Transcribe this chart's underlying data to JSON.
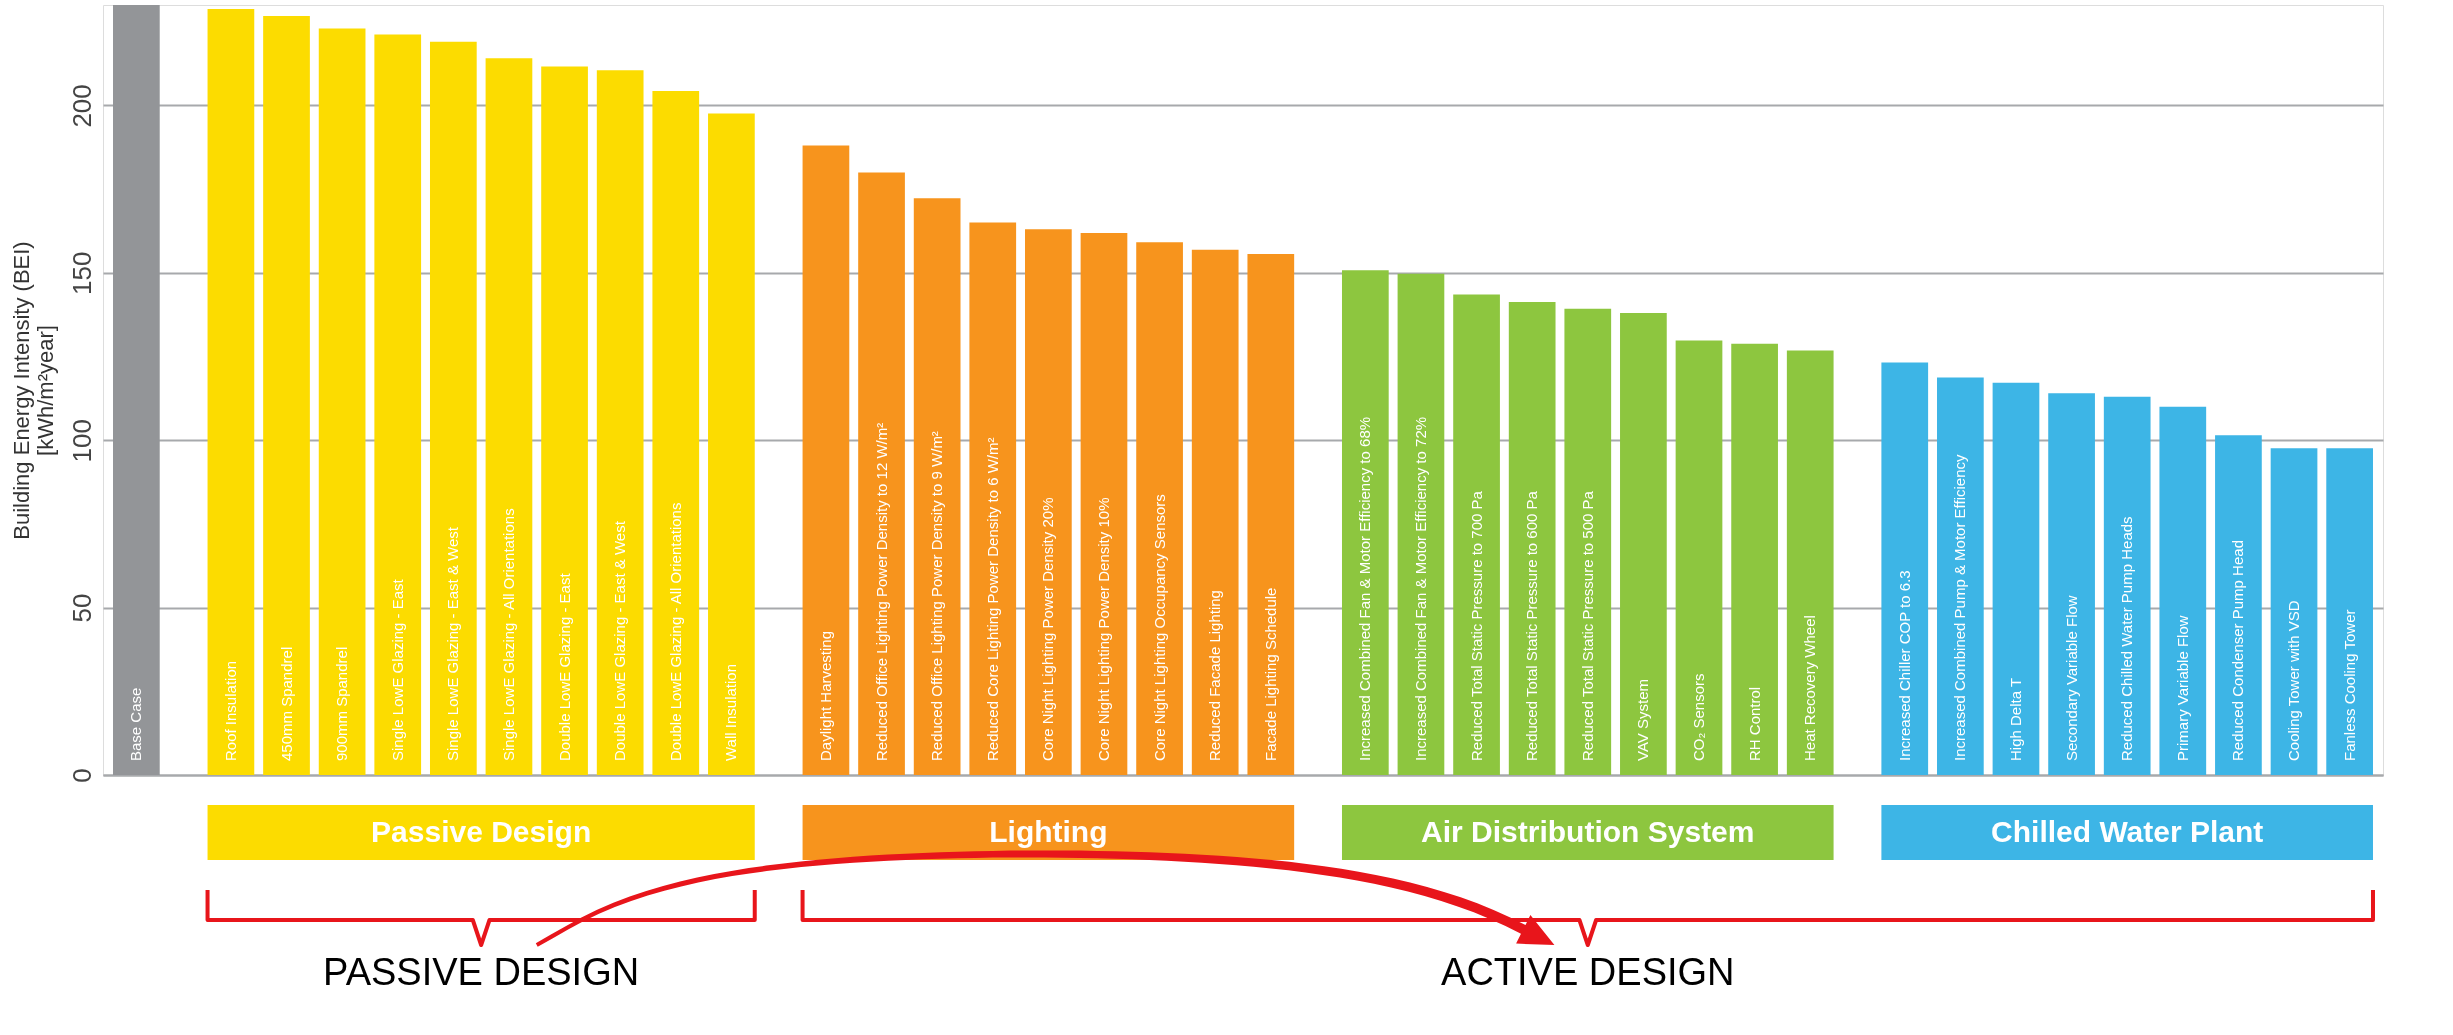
{
  "chart_data": {
    "type": "bar",
    "ylabel": "Building Energy Intensity (BEI)\n[kWh/m²year]",
    "categories": [
      "Base Case",
      "Roof Insulation",
      "450mm Spandrel",
      "900mm Spandrel",
      "Single LowE Glazing - East",
      "Single LowE Glazing - East & West",
      "Single LowE Glazing - All Orientations",
      "Double LowE Glazing - East",
      "Double LowE Glazing - East & West",
      "Double LowE Glazing - All Orientations",
      "Wall Insulation",
      "Daylight Harvesting",
      "Reduced Office Lighting Power Density to 12 W/m²",
      "Reduced Office Lighting Power Density to 9 W/m²",
      "Reduced Core Lighting Power Density to 6 W/m²",
      "Core Night Lighting Power Density 20%",
      "Core Night Lighting Power Density 10%",
      "Core Night Lighting Occupancy Sensors",
      "Reduced Facade Lighting",
      "Facade Lighting Schedule",
      "Increased Combined Fan & Motor Efficiency to 68%",
      "Increased Combined Fan & Motor Efficiency to 72%",
      "Reduced Total Static Pressure to 700 Pa",
      "Reduced Total Static Pressure to 600 Pa",
      "Reduced Total Static Pressure to 500 Pa",
      "VAV System",
      "CO₂ Sensors",
      "RH Control",
      "Heat Recovery Wheel",
      "Increased Chiller COP to 6.3",
      "Increased Combined Pump & Motor Efficiency",
      "High Delta T",
      "Secondary Variable Flow",
      "Reduced Chilled Water Pump Heads",
      "Primary Variable Flow",
      "Reduced Condenser Pump Head",
      "Cooling Tower with VSD",
      "Fanless Cooling Tower"
    ],
    "series": [
      {
        "color": "#939598",
        "values": [
          230,
          null,
          null,
          null,
          null,
          null,
          null,
          null,
          null,
          null,
          null,
          null,
          null,
          null,
          null,
          null,
          null,
          null,
          null,
          null,
          null,
          null,
          null,
          null,
          null,
          null,
          null,
          null,
          null,
          null,
          null,
          null,
          null,
          null,
          null,
          null,
          null,
          null
        ]
      },
      {
        "name": "Passive Design",
        "color": "#fcdc00",
        "values": [
          null,
          228.8,
          226.7,
          223,
          221.2,
          219,
          214.1,
          211.6,
          210.5,
          204.3,
          197.6,
          null,
          null,
          null,
          null,
          null,
          null,
          null,
          null,
          null,
          null,
          null,
          null,
          null,
          null,
          null,
          null,
          null,
          null,
          null,
          null,
          null,
          null,
          null,
          null,
          null,
          null,
          null
        ]
      },
      {
        "name": "Lighting",
        "color": "#f7941d",
        "values": [
          null,
          null,
          null,
          null,
          null,
          null,
          null,
          null,
          null,
          null,
          null,
          188,
          180,
          172.3,
          165,
          163,
          161.9,
          159.1,
          156.9,
          155.6,
          null,
          null,
          null,
          null,
          null,
          null,
          null,
          null,
          null,
          null,
          null,
          null,
          null,
          null,
          null,
          null,
          null,
          null
        ]
      },
      {
        "name": "Air Distribution System",
        "color": "#8dc63f",
        "values": [
          null,
          null,
          null,
          null,
          null,
          null,
          null,
          null,
          null,
          null,
          null,
          null,
          null,
          null,
          null,
          null,
          null,
          null,
          null,
          null,
          150.8,
          149.7,
          143.5,
          141.3,
          139.3,
          138,
          129.8,
          128.8,
          126.8,
          null,
          null,
          null,
          null,
          null,
          null,
          null,
          null,
          null
        ]
      },
      {
        "name": "Chilled Water Plant",
        "color": "#3db5e6",
        "values": [
          null,
          null,
          null,
          null,
          null,
          null,
          null,
          null,
          null,
          null,
          null,
          null,
          null,
          null,
          null,
          null,
          null,
          null,
          null,
          null,
          null,
          null,
          null,
          null,
          null,
          null,
          null,
          null,
          null,
          123.2,
          118.7,
          117.2,
          114,
          113,
          110,
          101.5,
          97.6,
          97.6
        ]
      }
    ],
    "ylim": [
      0,
      230
    ],
    "yticks": [
      0,
      50,
      100,
      150,
      200
    ],
    "grid": "y",
    "tick_labels": "y",
    "annotations": [
      "PASSIVE DESIGN",
      "ACTIVE DESIGN"
    ]
  }
}
